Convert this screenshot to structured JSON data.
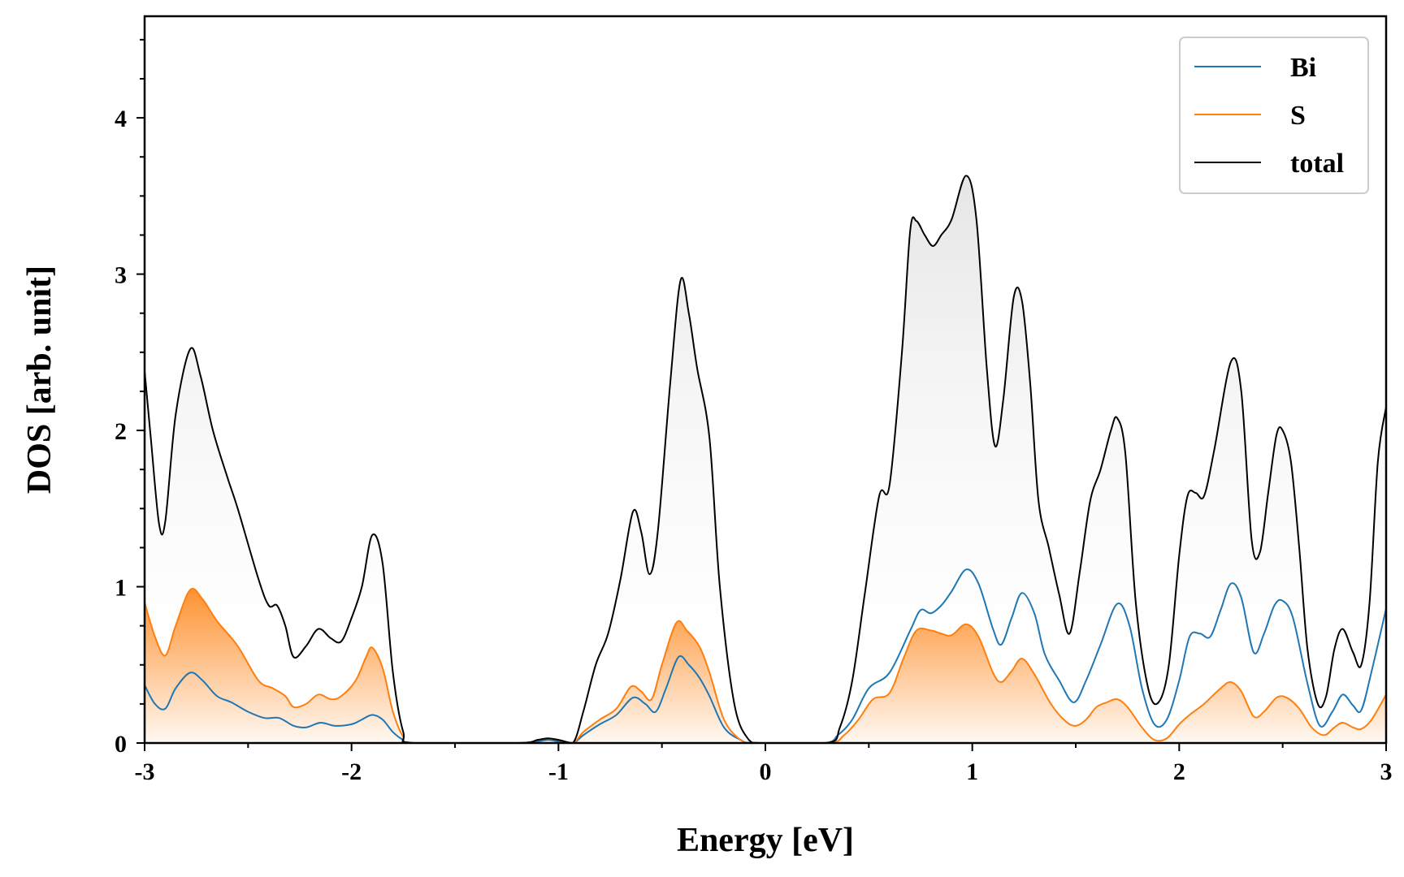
{
  "chart_data": {
    "type": "area",
    "title": "",
    "xlabel": "Energy [eV]",
    "ylabel": "DOS [arb. unit]",
    "xlim": [
      -3,
      3
    ],
    "ylim": [
      0,
      4.65
    ],
    "xticks": [
      -3,
      -2,
      -1,
      0,
      1,
      2,
      3
    ],
    "xtick_labels": [
      "-3",
      "-2",
      "-1",
      "0",
      "1",
      "2",
      "3"
    ],
    "yticks": [
      0,
      1,
      2,
      3,
      4
    ],
    "ytick_labels": [
      "0",
      "1",
      "2",
      "3",
      "4"
    ],
    "legend_position": "top-right",
    "series": [
      {
        "name": "Bi",
        "color": "#1f77b4",
        "points": [
          [
            -3.0,
            0.37
          ],
          [
            -2.95,
            0.25
          ],
          [
            -2.9,
            0.22
          ],
          [
            -2.85,
            0.35
          ],
          [
            -2.78,
            0.45
          ],
          [
            -2.72,
            0.4
          ],
          [
            -2.65,
            0.3
          ],
          [
            -2.58,
            0.26
          ],
          [
            -2.5,
            0.2
          ],
          [
            -2.42,
            0.16
          ],
          [
            -2.35,
            0.16
          ],
          [
            -2.28,
            0.11
          ],
          [
            -2.22,
            0.1
          ],
          [
            -2.15,
            0.13
          ],
          [
            -2.08,
            0.11
          ],
          [
            -2.0,
            0.12
          ],
          [
            -1.95,
            0.15
          ],
          [
            -1.9,
            0.18
          ],
          [
            -1.85,
            0.15
          ],
          [
            -1.8,
            0.07
          ],
          [
            -1.75,
            0.02
          ],
          [
            -1.7,
            0.0
          ],
          [
            -1.2,
            0.0
          ],
          [
            -1.1,
            0.01
          ],
          [
            -1.05,
            0.02
          ],
          [
            -1.0,
            0.01
          ],
          [
            -0.93,
            0.0
          ],
          [
            -0.88,
            0.05
          ],
          [
            -0.8,
            0.12
          ],
          [
            -0.72,
            0.18
          ],
          [
            -0.64,
            0.29
          ],
          [
            -0.58,
            0.25
          ],
          [
            -0.53,
            0.2
          ],
          [
            -0.48,
            0.35
          ],
          [
            -0.42,
            0.55
          ],
          [
            -0.37,
            0.5
          ],
          [
            -0.32,
            0.42
          ],
          [
            -0.27,
            0.3
          ],
          [
            -0.2,
            0.1
          ],
          [
            -0.12,
            0.02
          ],
          [
            -0.05,
            0.0
          ],
          [
            0.28,
            0.0
          ],
          [
            0.35,
            0.05
          ],
          [
            0.42,
            0.15
          ],
          [
            0.5,
            0.35
          ],
          [
            0.6,
            0.45
          ],
          [
            0.7,
            0.72
          ],
          [
            0.75,
            0.85
          ],
          [
            0.8,
            0.83
          ],
          [
            0.85,
            0.88
          ],
          [
            0.9,
            0.97
          ],
          [
            0.97,
            1.11
          ],
          [
            1.03,
            1.02
          ],
          [
            1.1,
            0.73
          ],
          [
            1.14,
            0.63
          ],
          [
            1.19,
            0.8
          ],
          [
            1.24,
            0.96
          ],
          [
            1.3,
            0.83
          ],
          [
            1.35,
            0.57
          ],
          [
            1.42,
            0.4
          ],
          [
            1.49,
            0.26
          ],
          [
            1.55,
            0.4
          ],
          [
            1.62,
            0.63
          ],
          [
            1.7,
            0.89
          ],
          [
            1.76,
            0.75
          ],
          [
            1.82,
            0.35
          ],
          [
            1.88,
            0.12
          ],
          [
            1.94,
            0.15
          ],
          [
            2.0,
            0.4
          ],
          [
            2.05,
            0.68
          ],
          [
            2.1,
            0.7
          ],
          [
            2.15,
            0.68
          ],
          [
            2.2,
            0.85
          ],
          [
            2.25,
            1.02
          ],
          [
            2.3,
            0.93
          ],
          [
            2.36,
            0.58
          ],
          [
            2.41,
            0.7
          ],
          [
            2.46,
            0.88
          ],
          [
            2.5,
            0.91
          ],
          [
            2.55,
            0.8
          ],
          [
            2.62,
            0.38
          ],
          [
            2.68,
            0.11
          ],
          [
            2.74,
            0.2
          ],
          [
            2.79,
            0.31
          ],
          [
            2.84,
            0.24
          ],
          [
            2.88,
            0.21
          ],
          [
            2.93,
            0.46
          ],
          [
            3.0,
            0.86
          ]
        ]
      },
      {
        "name": "S",
        "color": "#ff7f0e",
        "points": [
          [
            -3.0,
            0.9
          ],
          [
            -2.95,
            0.68
          ],
          [
            -2.9,
            0.56
          ],
          [
            -2.85,
            0.75
          ],
          [
            -2.78,
            0.98
          ],
          [
            -2.72,
            0.92
          ],
          [
            -2.65,
            0.78
          ],
          [
            -2.55,
            0.62
          ],
          [
            -2.45,
            0.4
          ],
          [
            -2.38,
            0.35
          ],
          [
            -2.32,
            0.3
          ],
          [
            -2.28,
            0.23
          ],
          [
            -2.22,
            0.25
          ],
          [
            -2.16,
            0.31
          ],
          [
            -2.1,
            0.28
          ],
          [
            -2.05,
            0.3
          ],
          [
            -1.98,
            0.4
          ],
          [
            -1.93,
            0.55
          ],
          [
            -1.9,
            0.61
          ],
          [
            -1.85,
            0.48
          ],
          [
            -1.8,
            0.2
          ],
          [
            -1.75,
            0.04
          ],
          [
            -1.7,
            0.0
          ],
          [
            -1.2,
            0.0
          ],
          [
            -1.1,
            0.02
          ],
          [
            -1.05,
            0.03
          ],
          [
            -1.0,
            0.02
          ],
          [
            -0.93,
            0.0
          ],
          [
            -0.88,
            0.07
          ],
          [
            -0.8,
            0.15
          ],
          [
            -0.72,
            0.22
          ],
          [
            -0.65,
            0.36
          ],
          [
            -0.6,
            0.33
          ],
          [
            -0.55,
            0.28
          ],
          [
            -0.5,
            0.5
          ],
          [
            -0.43,
            0.77
          ],
          [
            -0.38,
            0.72
          ],
          [
            -0.32,
            0.62
          ],
          [
            -0.27,
            0.45
          ],
          [
            -0.2,
            0.15
          ],
          [
            -0.12,
            0.02
          ],
          [
            -0.05,
            0.0
          ],
          [
            0.3,
            0.0
          ],
          [
            0.38,
            0.05
          ],
          [
            0.45,
            0.15
          ],
          [
            0.52,
            0.28
          ],
          [
            0.6,
            0.32
          ],
          [
            0.67,
            0.55
          ],
          [
            0.73,
            0.72
          ],
          [
            0.8,
            0.72
          ],
          [
            0.85,
            0.7
          ],
          [
            0.9,
            0.69
          ],
          [
            0.97,
            0.76
          ],
          [
            1.03,
            0.68
          ],
          [
            1.1,
            0.45
          ],
          [
            1.14,
            0.39
          ],
          [
            1.19,
            0.46
          ],
          [
            1.24,
            0.54
          ],
          [
            1.3,
            0.44
          ],
          [
            1.38,
            0.25
          ],
          [
            1.45,
            0.14
          ],
          [
            1.5,
            0.11
          ],
          [
            1.55,
            0.15
          ],
          [
            1.6,
            0.23
          ],
          [
            1.65,
            0.26
          ],
          [
            1.7,
            0.28
          ],
          [
            1.75,
            0.23
          ],
          [
            1.82,
            0.1
          ],
          [
            1.88,
            0.02
          ],
          [
            1.94,
            0.03
          ],
          [
            2.0,
            0.12
          ],
          [
            2.05,
            0.18
          ],
          [
            2.12,
            0.25
          ],
          [
            2.2,
            0.35
          ],
          [
            2.25,
            0.39
          ],
          [
            2.3,
            0.33
          ],
          [
            2.36,
            0.17
          ],
          [
            2.41,
            0.2
          ],
          [
            2.47,
            0.29
          ],
          [
            2.52,
            0.29
          ],
          [
            2.58,
            0.22
          ],
          [
            2.64,
            0.1
          ],
          [
            2.7,
            0.05
          ],
          [
            2.75,
            0.1
          ],
          [
            2.79,
            0.13
          ],
          [
            2.84,
            0.1
          ],
          [
            2.88,
            0.09
          ],
          [
            2.93,
            0.15
          ],
          [
            3.0,
            0.31
          ]
        ]
      },
      {
        "name": "total",
        "color": "#000000",
        "points": [
          [
            -3.0,
            2.38
          ],
          [
            -2.97,
            1.95
          ],
          [
            -2.93,
            1.4
          ],
          [
            -2.9,
            1.42
          ],
          [
            -2.85,
            2.1
          ],
          [
            -2.78,
            2.52
          ],
          [
            -2.73,
            2.35
          ],
          [
            -2.67,
            2.0
          ],
          [
            -2.6,
            1.7
          ],
          [
            -2.55,
            1.5
          ],
          [
            -2.45,
            1.05
          ],
          [
            -2.4,
            0.88
          ],
          [
            -2.36,
            0.88
          ],
          [
            -2.32,
            0.75
          ],
          [
            -2.28,
            0.55
          ],
          [
            -2.22,
            0.62
          ],
          [
            -2.16,
            0.73
          ],
          [
            -2.1,
            0.67
          ],
          [
            -2.05,
            0.65
          ],
          [
            -2.0,
            0.8
          ],
          [
            -1.95,
            1.0
          ],
          [
            -1.9,
            1.33
          ],
          [
            -1.85,
            1.15
          ],
          [
            -1.8,
            0.45
          ],
          [
            -1.75,
            0.07
          ],
          [
            -1.7,
            0.0
          ],
          [
            -1.2,
            0.0
          ],
          [
            -1.1,
            0.02
          ],
          [
            -1.05,
            0.03
          ],
          [
            -1.0,
            0.02
          ],
          [
            -0.93,
            0.0
          ],
          [
            -0.88,
            0.2
          ],
          [
            -0.82,
            0.5
          ],
          [
            -0.76,
            0.7
          ],
          [
            -0.7,
            1.05
          ],
          [
            -0.64,
            1.48
          ],
          [
            -0.6,
            1.35
          ],
          [
            -0.56,
            1.08
          ],
          [
            -0.52,
            1.35
          ],
          [
            -0.46,
            2.3
          ],
          [
            -0.41,
            2.96
          ],
          [
            -0.37,
            2.75
          ],
          [
            -0.33,
            2.4
          ],
          [
            -0.27,
            1.95
          ],
          [
            -0.22,
            1.0
          ],
          [
            -0.15,
            0.25
          ],
          [
            -0.08,
            0.02
          ],
          [
            -0.02,
            0.0
          ],
          [
            0.3,
            0.0
          ],
          [
            0.36,
            0.1
          ],
          [
            0.42,
            0.4
          ],
          [
            0.48,
            0.95
          ],
          [
            0.55,
            1.58
          ],
          [
            0.6,
            1.65
          ],
          [
            0.66,
            2.5
          ],
          [
            0.7,
            3.28
          ],
          [
            0.73,
            3.34
          ],
          [
            0.77,
            3.25
          ],
          [
            0.81,
            3.18
          ],
          [
            0.85,
            3.25
          ],
          [
            0.9,
            3.35
          ],
          [
            0.97,
            3.63
          ],
          [
            1.02,
            3.35
          ],
          [
            1.07,
            2.4
          ],
          [
            1.11,
            1.9
          ],
          [
            1.15,
            2.2
          ],
          [
            1.2,
            2.85
          ],
          [
            1.24,
            2.83
          ],
          [
            1.28,
            2.3
          ],
          [
            1.32,
            1.55
          ],
          [
            1.37,
            1.25
          ],
          [
            1.42,
            0.95
          ],
          [
            1.47,
            0.7
          ],
          [
            1.52,
            1.1
          ],
          [
            1.57,
            1.55
          ],
          [
            1.62,
            1.75
          ],
          [
            1.67,
            2.0
          ],
          [
            1.7,
            2.08
          ],
          [
            1.74,
            1.85
          ],
          [
            1.79,
            0.9
          ],
          [
            1.85,
            0.35
          ],
          [
            1.9,
            0.26
          ],
          [
            1.95,
            0.5
          ],
          [
            2.0,
            1.2
          ],
          [
            2.04,
            1.58
          ],
          [
            2.08,
            1.6
          ],
          [
            2.12,
            1.58
          ],
          [
            2.17,
            1.88
          ],
          [
            2.25,
            2.44
          ],
          [
            2.3,
            2.25
          ],
          [
            2.35,
            1.3
          ],
          [
            2.39,
            1.22
          ],
          [
            2.43,
            1.6
          ],
          [
            2.47,
            1.97
          ],
          [
            2.5,
            2.0
          ],
          [
            2.54,
            1.8
          ],
          [
            2.58,
            1.25
          ],
          [
            2.62,
            0.6
          ],
          [
            2.67,
            0.25
          ],
          [
            2.71,
            0.3
          ],
          [
            2.75,
            0.6
          ],
          [
            2.79,
            0.73
          ],
          [
            2.84,
            0.58
          ],
          [
            2.88,
            0.5
          ],
          [
            2.92,
            0.9
          ],
          [
            2.96,
            1.8
          ],
          [
            3.0,
            2.15
          ]
        ]
      }
    ]
  }
}
